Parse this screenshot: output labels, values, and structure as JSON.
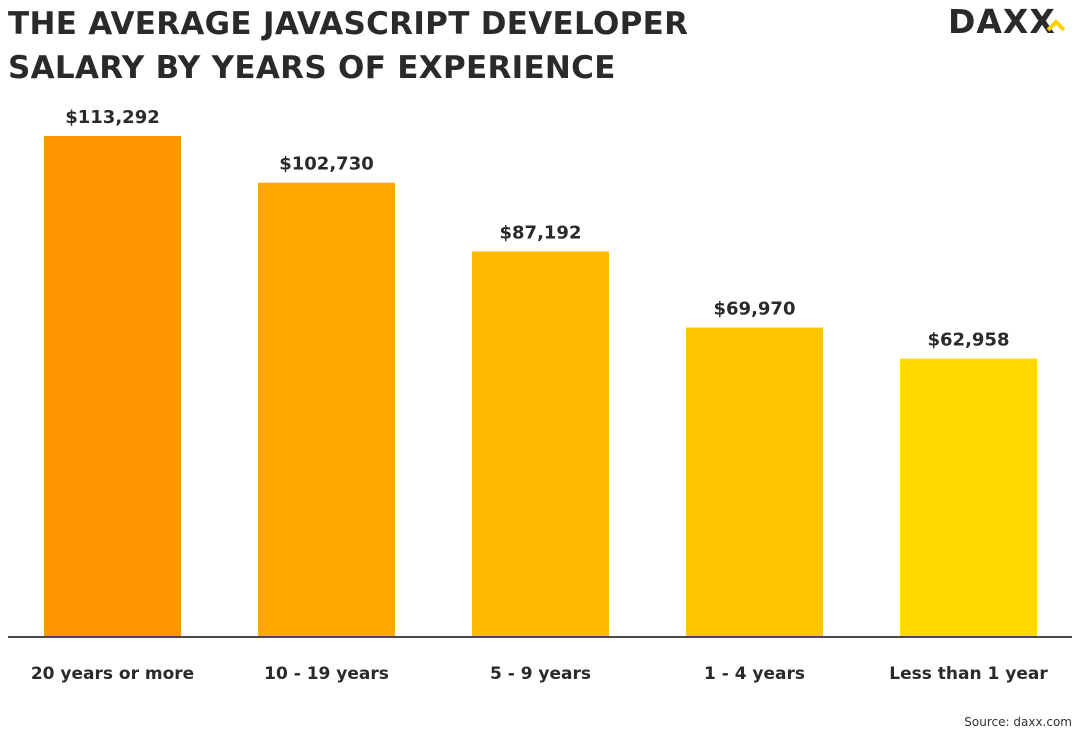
{
  "title_line1": "THE AVERAGE JAVASCRIPT DEVELOPER",
  "title_line2": "SALARY BY YEARS OF EXPERIENCE",
  "logo_text": "DAXX",
  "source": "Source: daxx.com",
  "colors": {
    "text": "#2a2a2a",
    "axis": "#4a4a4a",
    "logo": "#2a2a2a",
    "logo_accent": "#ffd200"
  },
  "chart_data": {
    "type": "bar",
    "title": "THE AVERAGE JAVASCRIPT DEVELOPER SALARY BY YEARS OF EXPERIENCE",
    "xlabel": "",
    "ylabel": "",
    "ylim": [
      0,
      125000
    ],
    "grid": false,
    "categories": [
      "20 years or more",
      "10 - 19 years",
      "5 - 9 years",
      "1 - 4 years",
      "Less than 1 year"
    ],
    "values": [
      113292,
      102730,
      87192,
      69970,
      62958
    ],
    "data_labels": [
      "$113,292",
      "$102,730",
      "$87,192",
      "$69,970",
      "$62,958"
    ],
    "bar_colors": [
      "#ff9500",
      "#ffa800",
      "#ffbb00",
      "#ffc600",
      "#ffd900"
    ]
  }
}
